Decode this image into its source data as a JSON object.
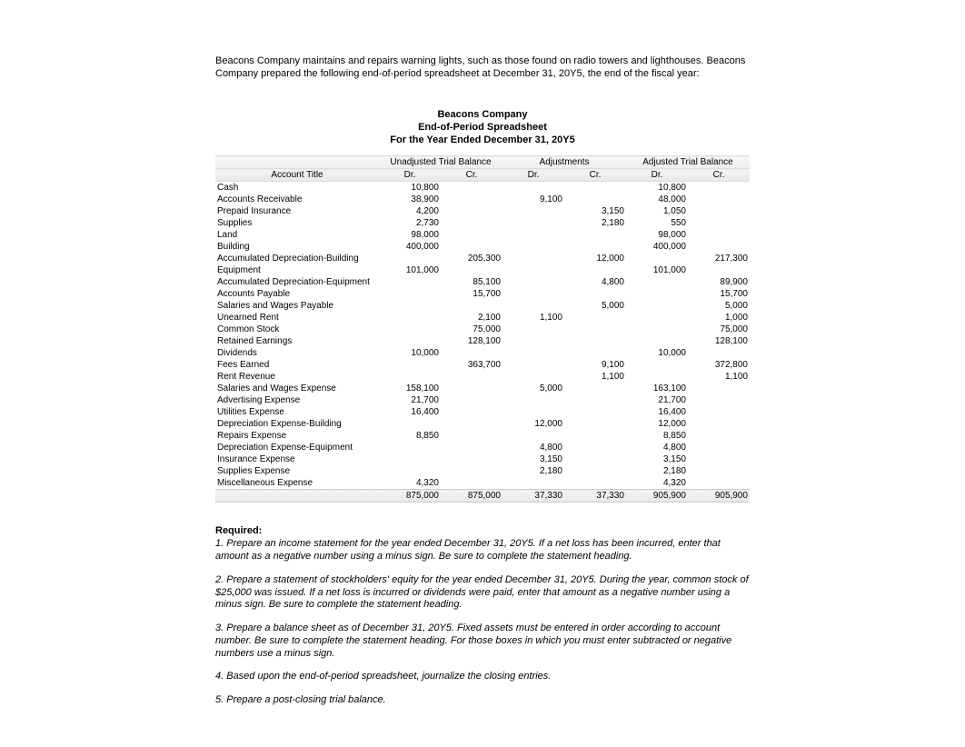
{
  "intro": "Beacons Company maintains and repairs warning lights, such as those found on radio towers and lighthouses. Beacons Company prepared the following end-of-period spreadsheet at December 31, 20Y5, the end of the fiscal year:",
  "header": {
    "line1": "Beacons Company",
    "line2": "End-of-Period Spreadsheet",
    "line3": "For the Year Ended December 31, 20Y5"
  },
  "section_labels": {
    "unadj": "Unadjusted Trial Balance",
    "adj": "Adjustments",
    "adjtb": "Adjusted Trial Balance"
  },
  "col_labels": {
    "acct": "Account Title",
    "dr": "Dr.",
    "cr": "Cr."
  },
  "rows": [
    {
      "acct": "Cash",
      "u_dr": "10,800",
      "u_cr": "",
      "a_dr": "",
      "a_cr": "",
      "t_dr": "10,800",
      "t_cr": ""
    },
    {
      "acct": "Accounts Receivable",
      "u_dr": "38,900",
      "u_cr": "",
      "a_dr": "9,100",
      "a_cr": "",
      "t_dr": "48,000",
      "t_cr": ""
    },
    {
      "acct": "Prepaid Insurance",
      "u_dr": "4,200",
      "u_cr": "",
      "a_dr": "",
      "a_cr": "3,150",
      "t_dr": "1,050",
      "t_cr": ""
    },
    {
      "acct": "Supplies",
      "u_dr": "2,730",
      "u_cr": "",
      "a_dr": "",
      "a_cr": "2,180",
      "t_dr": "550",
      "t_cr": ""
    },
    {
      "acct": "Land",
      "u_dr": "98,000",
      "u_cr": "",
      "a_dr": "",
      "a_cr": "",
      "t_dr": "98,000",
      "t_cr": ""
    },
    {
      "acct": "Building",
      "u_dr": "400,000",
      "u_cr": "",
      "a_dr": "",
      "a_cr": "",
      "t_dr": "400,000",
      "t_cr": ""
    },
    {
      "acct": "Accumulated Depreciation-Building",
      "u_dr": "",
      "u_cr": "205,300",
      "a_dr": "",
      "a_cr": "12,000",
      "t_dr": "",
      "t_cr": "217,300"
    },
    {
      "acct": "Equipment",
      "u_dr": "101,000",
      "u_cr": "",
      "a_dr": "",
      "a_cr": "",
      "t_dr": "101,000",
      "t_cr": ""
    },
    {
      "acct": "Accumulated Depreciation-Equipment",
      "u_dr": "",
      "u_cr": "85,100",
      "a_dr": "",
      "a_cr": "4,800",
      "t_dr": "",
      "t_cr": "89,900"
    },
    {
      "acct": "Accounts Payable",
      "u_dr": "",
      "u_cr": "15,700",
      "a_dr": "",
      "a_cr": "",
      "t_dr": "",
      "t_cr": "15,700"
    },
    {
      "acct": "Salaries and Wages Payable",
      "u_dr": "",
      "u_cr": "",
      "a_dr": "",
      "a_cr": "5,000",
      "t_dr": "",
      "t_cr": "5,000"
    },
    {
      "acct": "Unearned Rent",
      "u_dr": "",
      "u_cr": "2,100",
      "a_dr": "1,100",
      "a_cr": "",
      "t_dr": "",
      "t_cr": "1,000"
    },
    {
      "acct": "Common Stock",
      "u_dr": "",
      "u_cr": "75,000",
      "a_dr": "",
      "a_cr": "",
      "t_dr": "",
      "t_cr": "75,000"
    },
    {
      "acct": "Retained Earnings",
      "u_dr": "",
      "u_cr": "128,100",
      "a_dr": "",
      "a_cr": "",
      "t_dr": "",
      "t_cr": "128,100"
    },
    {
      "acct": "Dividends",
      "u_dr": "10,000",
      "u_cr": "",
      "a_dr": "",
      "a_cr": "",
      "t_dr": "10,000",
      "t_cr": ""
    },
    {
      "acct": "Fees Earned",
      "u_dr": "",
      "u_cr": "363,700",
      "a_dr": "",
      "a_cr": "9,100",
      "t_dr": "",
      "t_cr": "372,800"
    },
    {
      "acct": "Rent Revenue",
      "u_dr": "",
      "u_cr": "",
      "a_dr": "",
      "a_cr": "1,100",
      "t_dr": "",
      "t_cr": "1,100"
    },
    {
      "acct": "Salaries and Wages Expense",
      "u_dr": "158,100",
      "u_cr": "",
      "a_dr": "5,000",
      "a_cr": "",
      "t_dr": "163,100",
      "t_cr": ""
    },
    {
      "acct": "Advertising Expense",
      "u_dr": "21,700",
      "u_cr": "",
      "a_dr": "",
      "a_cr": "",
      "t_dr": "21,700",
      "t_cr": ""
    },
    {
      "acct": "Utilities Expense",
      "u_dr": "16,400",
      "u_cr": "",
      "a_dr": "",
      "a_cr": "",
      "t_dr": "16,400",
      "t_cr": ""
    },
    {
      "acct": "Depreciation Expense-Building",
      "u_dr": "",
      "u_cr": "",
      "a_dr": "12,000",
      "a_cr": "",
      "t_dr": "12,000",
      "t_cr": ""
    },
    {
      "acct": "Repairs Expense",
      "u_dr": "8,850",
      "u_cr": "",
      "a_dr": "",
      "a_cr": "",
      "t_dr": "8,850",
      "t_cr": ""
    },
    {
      "acct": "Depreciation Expense-Equipment",
      "u_dr": "",
      "u_cr": "",
      "a_dr": "4,800",
      "a_cr": "",
      "t_dr": "4,800",
      "t_cr": ""
    },
    {
      "acct": "Insurance Expense",
      "u_dr": "",
      "u_cr": "",
      "a_dr": "3,150",
      "a_cr": "",
      "t_dr": "3,150",
      "t_cr": ""
    },
    {
      "acct": "Supplies Expense",
      "u_dr": "",
      "u_cr": "",
      "a_dr": "2,180",
      "a_cr": "",
      "t_dr": "2,180",
      "t_cr": ""
    },
    {
      "acct": "Miscellaneous Expense",
      "u_dr": "4,320",
      "u_cr": "",
      "a_dr": "",
      "a_cr": "",
      "t_dr": "4,320",
      "t_cr": ""
    }
  ],
  "totals": {
    "acct": "",
    "u_dr": "875,000",
    "u_cr": "875,000",
    "a_dr": "37,330",
    "a_cr": "37,330",
    "t_dr": "905,900",
    "t_cr": "905,900"
  },
  "required": {
    "title": "Required:",
    "items": [
      "1.  Prepare an income statement for the year ended December 31, 20Y5. If a net loss has been incurred, enter that amount as a negative number using a minus sign. Be sure to complete the statement heading.",
      "2.  Prepare a statement of stockholders' equity for the year ended December 31, 20Y5. During the year, common stock of $25,000 was issued. If a net loss is incurred or dividends were paid, enter that amount as a negative number using a minus sign. Be sure to complete the statement heading.",
      "3.  Prepare a balance sheet as of December 31, 20Y5. Fixed assets must be entered in order according to account number. Be sure to complete the statement heading. For those boxes in which you must enter subtracted or negative numbers use a minus sign.",
      "4.  Based upon the end-of-period spreadsheet, journalize the closing entries.",
      "5.  Prepare a post-closing trial balance."
    ]
  }
}
